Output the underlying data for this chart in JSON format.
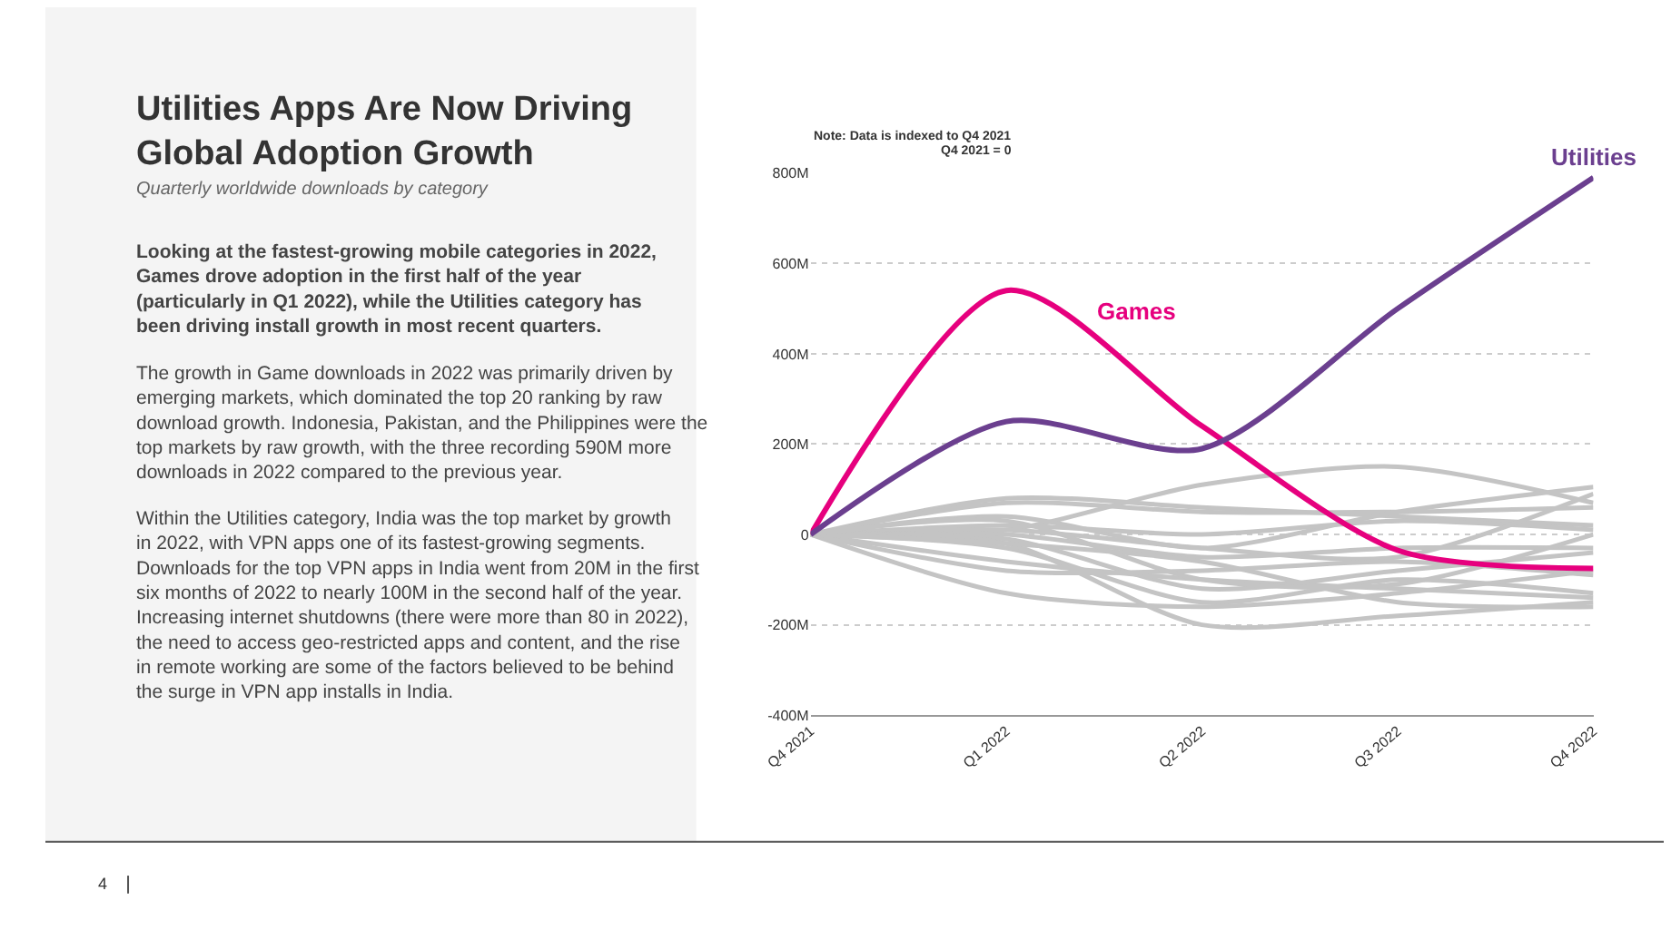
{
  "chart_data": {
    "type": "line",
    "title": "Utilities Apps Are Now Driving Global Adoption Growth",
    "subtitle": "Quarterly worldwide downloads by category",
    "categories": [
      "Q4 2021",
      "Q1 2022",
      "Q2 2022",
      "Q3 2022",
      "Q4 2022"
    ],
    "ylim": [
      -400,
      800
    ],
    "yticks": [
      {
        "value": -400,
        "label": "-400M"
      },
      {
        "value": -200,
        "label": "-200M"
      },
      0,
      {
        "value": 200,
        "label": "200M"
      },
      {
        "value": 400,
        "label": "400M"
      },
      {
        "value": 600,
        "label": "600M"
      },
      {
        "value": 800,
        "label": "800M"
      }
    ],
    "grid": "y",
    "legend": false,
    "marker": "none",
    "line_style": "solid",
    "series": [
      {
        "color": "#c4c4c4",
        "values": [
          0,
          10,
          110,
          150,
          70
        ]
      },
      {
        "color": "#c4c4c4",
        "values": [
          0,
          80,
          60,
          40,
          20
        ]
      },
      {
        "color": "#c4c4c4",
        "values": [
          0,
          70,
          50,
          50,
          60
        ]
      },
      {
        "color": "#c4c4c4",
        "values": [
          0,
          40,
          -30,
          50,
          105
        ]
      },
      {
        "color": "#c4c4c4",
        "values": [
          0,
          20,
          0,
          30,
          10
        ]
      },
      {
        "color": "#c4c4c4",
        "values": [
          0,
          10,
          -30,
          -50,
          90
        ]
      },
      {
        "color": "#c4c4c4",
        "values": [
          0,
          0,
          -50,
          -30,
          -30
        ]
      },
      {
        "color": "#c4c4c4",
        "values": [
          0,
          -10,
          -120,
          -80,
          -40
        ]
      },
      {
        "color": "#c4c4c4",
        "values": [
          0,
          -30,
          -150,
          -100,
          -130
        ]
      },
      {
        "color": "#c4c4c4",
        "values": [
          0,
          -20,
          -200,
          -180,
          -150
        ]
      },
      {
        "color": "#c4c4c4",
        "values": [
          0,
          -60,
          -100,
          -120,
          -140
        ]
      },
      {
        "color": "#c4c4c4",
        "values": [
          0,
          -130,
          -160,
          -130,
          -80
        ]
      },
      {
        "color": "#c4c4c4",
        "values": [
          0,
          -80,
          -80,
          -60,
          -90
        ]
      },
      {
        "color": "#c4c4c4",
        "values": [
          0,
          -20,
          -60,
          -150,
          -160
        ]
      },
      {
        "color": "#c4c4c4",
        "values": [
          0,
          30,
          -100,
          -110,
          0
        ]
      },
      {
        "name": "Games",
        "color": "#e6007e",
        "values": [
          0,
          540,
          240,
          -35,
          -75
        ]
      },
      {
        "name": "Utilities",
        "color": "#6b3f8f",
        "values": [
          0,
          250,
          190,
          500,
          790
        ]
      }
    ],
    "annotations": [
      "Note: Data is indexed to Q4 2021",
      "Q4 2021 = 0",
      "Looking at the fastest-growing mobile categories in 2022, Games drove adoption in the first half of the year (particularly in Q1 2022), while the Utilities category has been driving install growth in most recent quarters.",
      "The growth in Game downloads in 2022 was primarily driven by emerging markets, which dominated the top 20 ranking by raw download growth. Indonesia, Pakistan, and the Philippines were the top markets by raw growth, with the three recording 590M more downloads in 2022 compared to the previous year.",
      "Within the Utilities category, India was the top market by growth in 2022, with VPN apps one of its fastest-growing segments. Downloads for the top VPN apps in India went from 20M in the first six months of 2022 to nearly 100M in the second half of the year. Increasing internet shutdowns (there were more than 80 in 2022), the need to access geo-restricted apps and content, and the rise in remote working are some of the factors believed to be behind the surge in VPN app installs in India.",
      "4"
    ]
  }
}
